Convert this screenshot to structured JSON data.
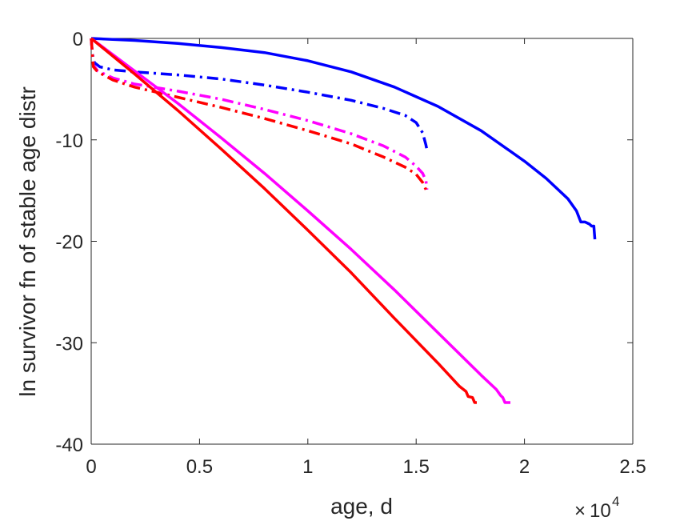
{
  "chart_data": {
    "type": "line",
    "xlabel": "age, d",
    "ylabel": "ln survivor fn of stable age distr",
    "x_multiplier": "10",
    "x_multiplier_exp": "4",
    "xlim": [
      0,
      25000
    ],
    "ylim": [
      -40,
      0
    ],
    "xticks": [
      0,
      5000,
      10000,
      15000,
      20000,
      25000
    ],
    "xtick_labels": [
      "0",
      "0.5",
      "1",
      "1.5",
      "2",
      "2.5"
    ],
    "yticks": [
      0,
      -10,
      -20,
      -30,
      -40
    ],
    "ytick_labels": [
      "0",
      "-10",
      "-20",
      "-30",
      "-40"
    ],
    "grid": false,
    "series": [
      {
        "color": "#0000ff",
        "style": "solid",
        "points": [
          [
            0,
            0
          ],
          [
            2000,
            -0.2
          ],
          [
            4000,
            -0.5
          ],
          [
            6000,
            -0.9
          ],
          [
            8000,
            -1.4
          ],
          [
            10000,
            -2.2
          ],
          [
            12000,
            -3.3
          ],
          [
            14000,
            -4.8
          ],
          [
            16000,
            -6.7
          ],
          [
            18000,
            -9.1
          ],
          [
            20000,
            -12.1
          ],
          [
            21000,
            -13.8
          ],
          [
            22000,
            -15.8
          ],
          [
            22400,
            -17.0
          ],
          [
            22600,
            -18.1
          ],
          [
            22800,
            -18.1
          ],
          [
            23000,
            -18.3
          ],
          [
            23100,
            -18.5
          ],
          [
            23200,
            -18.5
          ],
          [
            23250,
            -19.8
          ]
        ]
      },
      {
        "color": "#0000ff",
        "style": "dashdot",
        "points": [
          [
            0,
            0
          ],
          [
            50,
            -1.5
          ],
          [
            150,
            -2.4
          ],
          [
            400,
            -2.8
          ],
          [
            1000,
            -3.1
          ],
          [
            2000,
            -3.3
          ],
          [
            4000,
            -3.6
          ],
          [
            6000,
            -4.0
          ],
          [
            8000,
            -4.6
          ],
          [
            10000,
            -5.3
          ],
          [
            12000,
            -6.1
          ],
          [
            13500,
            -6.9
          ],
          [
            14500,
            -7.6
          ],
          [
            15000,
            -8.3
          ],
          [
            15300,
            -9.3
          ],
          [
            15450,
            -10.5
          ],
          [
            15500,
            -11.0
          ]
        ]
      },
      {
        "color": "#ff00ff",
        "style": "dashdot",
        "points": [
          [
            0,
            0
          ],
          [
            100,
            -2.6
          ],
          [
            300,
            -3.2
          ],
          [
            1000,
            -3.9
          ],
          [
            2000,
            -4.5
          ],
          [
            4000,
            -5.2
          ],
          [
            6000,
            -6.0
          ],
          [
            8000,
            -7.0
          ],
          [
            10000,
            -8.1
          ],
          [
            12000,
            -9.4
          ],
          [
            13500,
            -10.6
          ],
          [
            14500,
            -11.7
          ],
          [
            15000,
            -12.6
          ],
          [
            15300,
            -13.3
          ],
          [
            15450,
            -14.0
          ],
          [
            15500,
            -14.9
          ]
        ]
      },
      {
        "color": "#ff0000",
        "style": "dashdot",
        "points": [
          [
            0,
            0
          ],
          [
            100,
            -2.8
          ],
          [
            300,
            -3.3
          ],
          [
            1000,
            -4.1
          ],
          [
            2000,
            -4.8
          ],
          [
            4000,
            -5.8
          ],
          [
            6000,
            -6.8
          ],
          [
            8000,
            -7.9
          ],
          [
            10000,
            -9.1
          ],
          [
            12000,
            -10.4
          ],
          [
            13500,
            -11.7
          ],
          [
            14500,
            -12.7
          ],
          [
            15000,
            -13.4
          ],
          [
            15300,
            -14.2
          ],
          [
            15450,
            -14.9
          ]
        ]
      },
      {
        "color": "#ff00ff",
        "style": "solid",
        "points": [
          [
            0,
            0
          ],
          [
            2000,
            -3.2
          ],
          [
            4000,
            -6.4
          ],
          [
            6000,
            -9.8
          ],
          [
            8000,
            -13.3
          ],
          [
            10000,
            -17.0
          ],
          [
            12000,
            -20.8
          ],
          [
            14000,
            -24.8
          ],
          [
            16000,
            -29.0
          ],
          [
            18000,
            -33.2
          ],
          [
            18700,
            -34.6
          ],
          [
            18900,
            -35.2
          ],
          [
            19000,
            -35.4
          ],
          [
            19100,
            -35.9
          ],
          [
            19350,
            -35.9
          ]
        ]
      },
      {
        "color": "#ff0000",
        "style": "solid",
        "points": [
          [
            0,
            0
          ],
          [
            2000,
            -3.5
          ],
          [
            4000,
            -7.1
          ],
          [
            6000,
            -10.9
          ],
          [
            8000,
            -14.8
          ],
          [
            10000,
            -18.9
          ],
          [
            12000,
            -23.1
          ],
          [
            14000,
            -27.6
          ],
          [
            16000,
            -32.0
          ],
          [
            17000,
            -34.3
          ],
          [
            17300,
            -34.8
          ],
          [
            17400,
            -35.3
          ],
          [
            17600,
            -35.4
          ],
          [
            17700,
            -35.9
          ],
          [
            17800,
            -35.9
          ]
        ]
      }
    ]
  }
}
